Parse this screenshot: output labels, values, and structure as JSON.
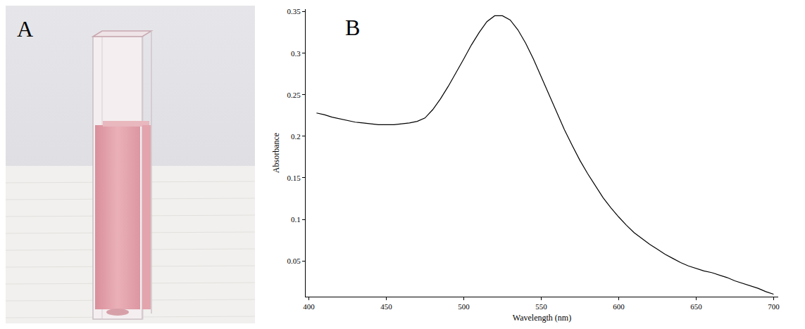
{
  "panel_labels": [
    "A",
    "B"
  ],
  "chart_data": {
    "type": "line",
    "x_label": "Wavelength (nm)",
    "y_label": "Absorbance",
    "x": [
      405,
      410,
      415,
      420,
      425,
      430,
      435,
      440,
      445,
      450,
      455,
      460,
      465,
      470,
      475,
      480,
      485,
      490,
      495,
      500,
      505,
      510,
      515,
      520,
      525,
      530,
      535,
      540,
      545,
      550,
      555,
      560,
      565,
      570,
      575,
      580,
      585,
      590,
      595,
      600,
      605,
      610,
      615,
      620,
      625,
      630,
      635,
      640,
      645,
      650,
      655,
      660,
      665,
      670,
      675,
      680,
      685,
      690,
      695,
      700
    ],
    "values": [
      0.228,
      0.226,
      0.223,
      0.221,
      0.219,
      0.217,
      0.216,
      0.215,
      0.214,
      0.214,
      0.214,
      0.215,
      0.216,
      0.218,
      0.222,
      0.232,
      0.245,
      0.26,
      0.276,
      0.293,
      0.31,
      0.325,
      0.338,
      0.345,
      0.345,
      0.34,
      0.328,
      0.312,
      0.293,
      0.272,
      0.25,
      0.229,
      0.208,
      0.189,
      0.171,
      0.155,
      0.14,
      0.126,
      0.114,
      0.103,
      0.093,
      0.084,
      0.077,
      0.07,
      0.064,
      0.058,
      0.053,
      0.048,
      0.044,
      0.041,
      0.038,
      0.036,
      0.033,
      0.03,
      0.026,
      0.023,
      0.02,
      0.017,
      0.013,
      0.01
    ],
    "color": "#000000",
    "xlim": [
      398,
      703
    ],
    "xticks": [
      400,
      450,
      500,
      550,
      600,
      650,
      700
    ],
    "ylim": [
      0.007,
      0.353
    ],
    "yticks": [
      0.05,
      0.1,
      0.15,
      0.2,
      0.25,
      0.3,
      0.35
    ],
    "grid": false
  }
}
